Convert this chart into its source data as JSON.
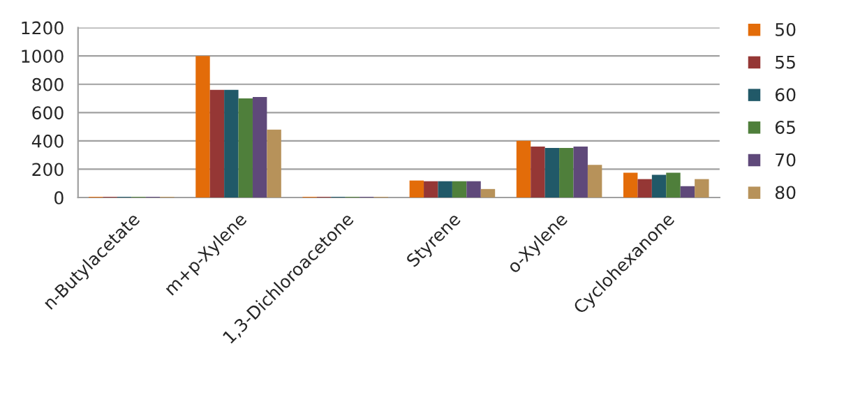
{
  "chart_data": {
    "type": "bar",
    "categories": [
      "n-Butylacetate",
      "m+p-Xylene",
      "1,3-Dichloroacetone",
      "Styrene",
      "o-Xylene",
      "Cyclohexanone"
    ],
    "series": [
      {
        "name": "50",
        "color": "#e36c09",
        "values": [
          5,
          1000,
          5,
          120,
          400,
          175
        ]
      },
      {
        "name": "55",
        "color": "#953735",
        "values": [
          5,
          760,
          5,
          115,
          360,
          130
        ]
      },
      {
        "name": "60",
        "color": "#215968",
        "values": [
          5,
          760,
          5,
          115,
          350,
          160
        ]
      },
      {
        "name": "65",
        "color": "#4f7f3b",
        "values": [
          5,
          700,
          5,
          115,
          350,
          175
        ]
      },
      {
        "name": "70",
        "color": "#5f497a",
        "values": [
          5,
          710,
          5,
          115,
          360,
          80
        ]
      },
      {
        "name": "80",
        "color": "#b7925a",
        "values": [
          5,
          480,
          5,
          60,
          230,
          130
        ]
      }
    ],
    "ylim": [
      0,
      1200
    ],
    "yticks": [
      0,
      200,
      400,
      600,
      800,
      1000,
      1200
    ],
    "grid": "y",
    "legend": "right"
  }
}
